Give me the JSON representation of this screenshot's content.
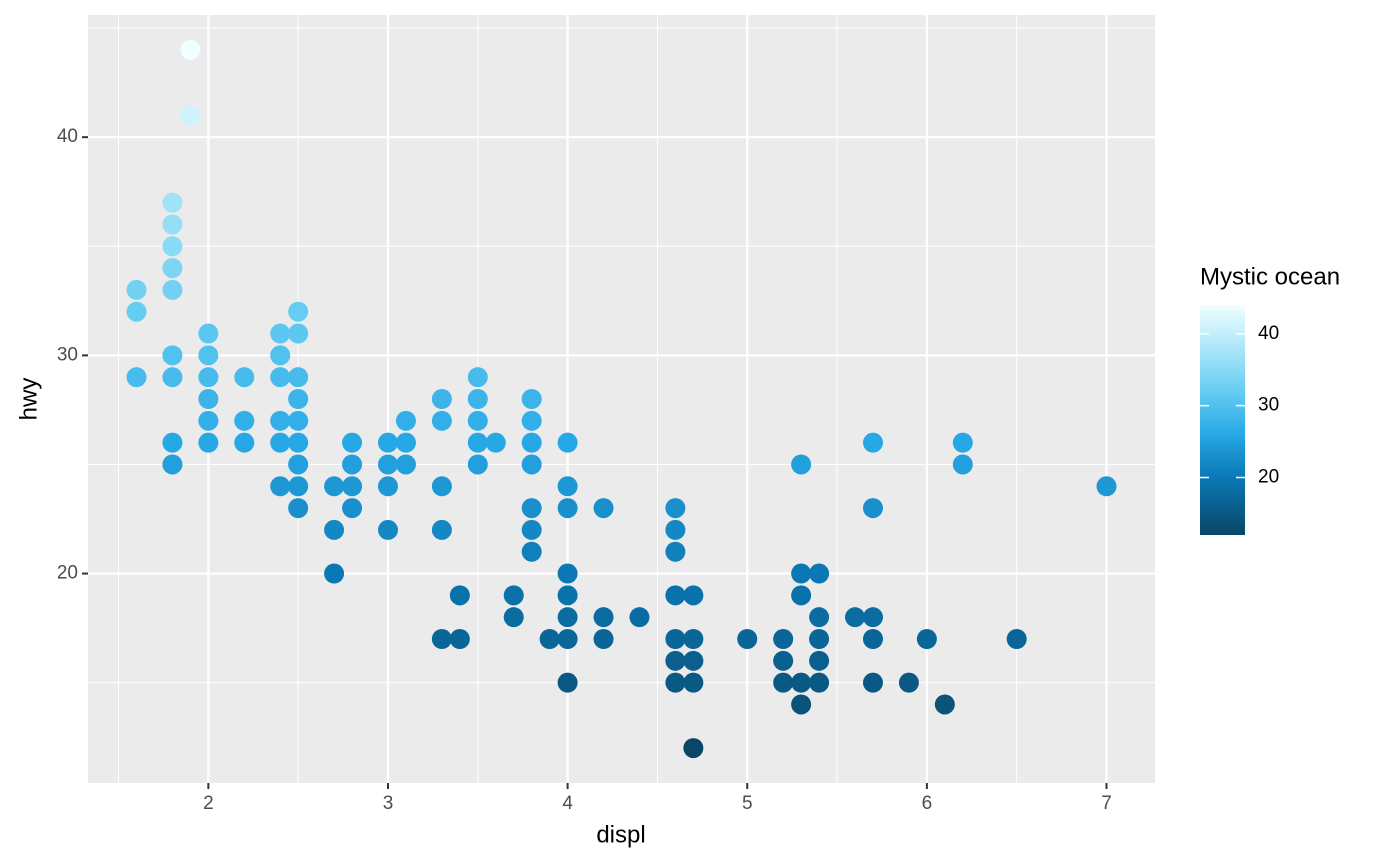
{
  "chart_data": {
    "type": "scatter",
    "x_label": "displ",
    "y_label": "hwy",
    "x": [
      1.6,
      1.6,
      1.6,
      1.8,
      1.8,
      1.8,
      1.8,
      1.8,
      1.8,
      1.8,
      1.8,
      1.8,
      1.9,
      1.9,
      2.0,
      2.0,
      2.0,
      2.0,
      2.0,
      2.0,
      2.2,
      2.2,
      2.2,
      2.4,
      2.4,
      2.4,
      2.4,
      2.4,
      2.4,
      2.5,
      2.5,
      2.5,
      2.5,
      2.5,
      2.5,
      2.5,
      2.5,
      2.5,
      2.7,
      2.7,
      2.7,
      2.8,
      2.8,
      2.8,
      2.8,
      3.0,
      3.0,
      3.0,
      3.0,
      3.1,
      3.1,
      3.1,
      3.3,
      3.3,
      3.3,
      3.3,
      3.3,
      3.4,
      3.4,
      3.5,
      3.5,
      3.5,
      3.5,
      3.5,
      3.6,
      3.7,
      3.7,
      3.8,
      3.8,
      3.8,
      3.8,
      3.8,
      3.8,
      3.8,
      3.9,
      4.0,
      4.0,
      4.0,
      4.0,
      4.0,
      4.0,
      4.0,
      4.0,
      4.2,
      4.2,
      4.2,
      4.4,
      4.6,
      4.6,
      4.6,
      4.6,
      4.6,
      4.6,
      4.6,
      4.7,
      4.7,
      4.7,
      4.7,
      4.7,
      5.0,
      5.2,
      5.2,
      5.2,
      5.3,
      5.3,
      5.3,
      5.3,
      5.3,
      5.4,
      5.4,
      5.4,
      5.4,
      5.4,
      5.6,
      5.7,
      5.7,
      5.7,
      5.7,
      5.7,
      5.9,
      6.0,
      6.1,
      6.2,
      6.2,
      6.5,
      7.0
    ],
    "y": [
      33,
      32,
      29,
      37,
      36,
      35,
      34,
      33,
      30,
      29,
      26,
      25,
      44,
      41,
      31,
      30,
      29,
      28,
      27,
      26,
      29,
      27,
      26,
      31,
      30,
      29,
      27,
      26,
      24,
      32,
      31,
      29,
      28,
      27,
      26,
      25,
      24,
      23,
      24,
      22,
      20,
      26,
      25,
      24,
      23,
      26,
      25,
      24,
      22,
      27,
      26,
      25,
      28,
      27,
      24,
      22,
      17,
      19,
      17,
      29,
      28,
      27,
      26,
      25,
      26,
      19,
      18,
      28,
      27,
      26,
      25,
      23,
      22,
      21,
      17,
      26,
      24,
      23,
      20,
      19,
      18,
      17,
      15,
      23,
      18,
      17,
      18,
      23,
      22,
      21,
      19,
      17,
      16,
      15,
      19,
      17,
      16,
      15,
      12,
      17,
      17,
      16,
      15,
      25,
      20,
      19,
      15,
      14,
      20,
      18,
      17,
      16,
      15,
      18,
      26,
      23,
      18,
      17,
      15,
      15,
      17,
      14,
      26,
      25,
      17,
      24
    ],
    "xlim": [
      1.33,
      7.27
    ],
    "xticks": [
      2,
      3,
      4,
      5,
      6,
      7
    ],
    "ylim": [
      10.4,
      45.6
    ],
    "yticks": [
      20,
      30,
      40
    ],
    "grid": true,
    "legend": {
      "title": "Mystic ocean",
      "position": "right",
      "range": [
        12,
        44
      ],
      "ticks": [
        20,
        30,
        40
      ]
    },
    "color_scale": {
      "values": [
        12,
        20,
        26,
        32,
        44
      ],
      "colors": [
        "#0a4668",
        "#0a78b4",
        "#27a8e6",
        "#66cdf2",
        "#f0ffff"
      ]
    }
  }
}
